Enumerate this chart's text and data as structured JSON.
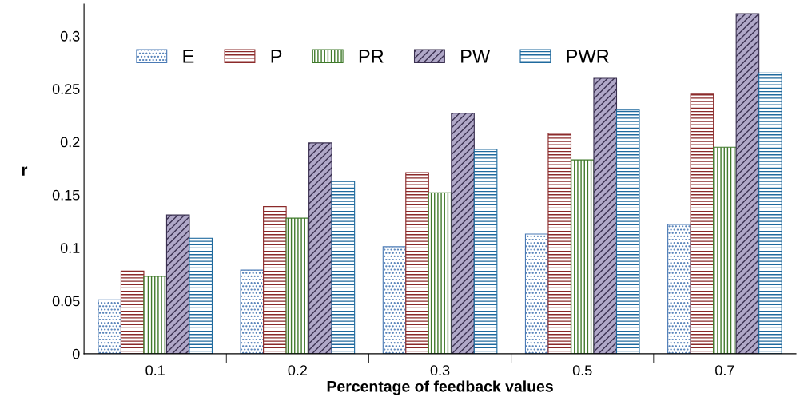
{
  "chart_data": {
    "type": "bar",
    "xlabel": "Percentage of feedback values",
    "ylabel": "r",
    "categories": [
      "0.1",
      "0.2",
      "0.3",
      "0.5",
      "0.7"
    ],
    "series": [
      {
        "name": "E",
        "color": "#4a7ab5",
        "values": [
          0.051,
          0.079,
          0.101,
          0.113,
          0.122
        ]
      },
      {
        "name": "P",
        "color": "#8b2a2a",
        "values": [
          0.078,
          0.139,
          0.171,
          0.208,
          0.245
        ]
      },
      {
        "name": "PR",
        "color": "#3f7a2a",
        "values": [
          0.073,
          0.128,
          0.152,
          0.183,
          0.195
        ]
      },
      {
        "name": "PW",
        "color": "#3a3050",
        "values": [
          0.131,
          0.199,
          0.227,
          0.26,
          0.321
        ]
      },
      {
        "name": "PWR",
        "color": "#1f6a9e",
        "values": [
          0.109,
          0.163,
          0.193,
          0.23,
          0.265
        ]
      }
    ],
    "ylim": [
      0,
      0.33
    ],
    "yticks": [
      0,
      0.05,
      0.1,
      0.15,
      0.2,
      0.25,
      0.3
    ],
    "grid": false,
    "legend": "top left"
  }
}
